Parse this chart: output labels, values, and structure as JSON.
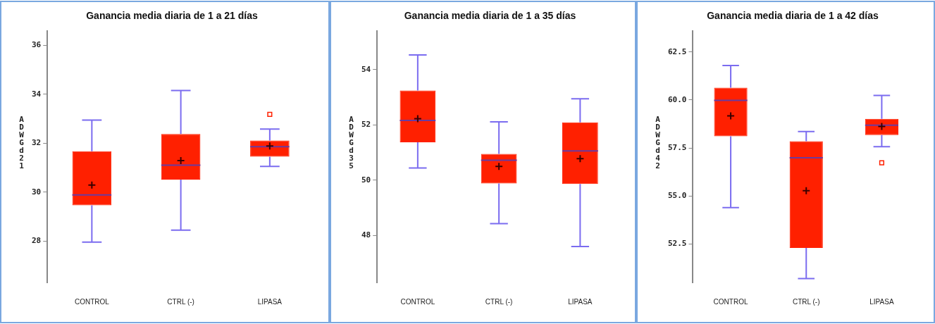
{
  "chart_data": [
    {
      "type": "box",
      "title": "Ganancia media diaria de 1 a 21 días",
      "ylabel": "ADWGd21",
      "categories": [
        "CONTROL",
        "CTRL (-)",
        "LIPASA"
      ],
      "ylim": [
        26.3,
        36.6
      ],
      "yticks": [
        28,
        30,
        32,
        34,
        36
      ],
      "grid": false,
      "legend": false,
      "series": [
        {
          "color": "#ff2000",
          "boxes": [
            {
              "low": 27.95,
              "q1": 29.46,
              "median": 29.88,
              "q3": 31.67,
              "high": 32.95,
              "mean": 30.29
            },
            {
              "low": 28.44,
              "q1": 30.51,
              "median": 31.1,
              "q3": 32.38,
              "high": 34.16,
              "mean": 31.29
            },
            {
              "low": 31.05,
              "q1": 31.45,
              "median": 31.86,
              "q3": 32.11,
              "high": 32.58,
              "mean": 31.89,
              "outliers": [
                33.18
              ]
            }
          ]
        }
      ]
    },
    {
      "type": "box",
      "title": "Ganancia media diaria de 1 a 35 días",
      "ylabel": "ADWGd35",
      "categories": [
        "CONTROL",
        "CTRL (-)",
        "LIPASA"
      ],
      "ylim": [
        46.3,
        55.4
      ],
      "yticks": [
        48,
        50,
        52,
        54
      ],
      "grid": false,
      "legend": false,
      "series": [
        {
          "color": "#ff2000",
          "boxes": [
            {
              "low": 50.44,
              "q1": 51.37,
              "median": 52.16,
              "q3": 53.24,
              "high": 54.53,
              "mean": 52.22
            },
            {
              "low": 48.43,
              "q1": 49.88,
              "median": 50.72,
              "q3": 50.95,
              "high": 52.11,
              "mean": 50.5
            },
            {
              "low": 47.6,
              "q1": 49.86,
              "median": 51.06,
              "q3": 52.09,
              "high": 52.94,
              "mean": 50.78
            }
          ]
        }
      ]
    },
    {
      "type": "box",
      "title": "Ganancia media diaria de 1 a 42 días",
      "ylabel": "ADWGd42",
      "categories": [
        "CONTROL",
        "CTRL (-)",
        "LIPASA"
      ],
      "ylim": [
        50.5,
        63.6
      ],
      "yticks": [
        {
          "value": 52.5,
          "label": "52.5"
        },
        {
          "value": 55,
          "label": "55.0"
        },
        {
          "value": 57.5,
          "label": "57.5"
        },
        {
          "value": 60,
          "label": "60.0"
        },
        {
          "value": 62.5,
          "label": "62.5"
        }
      ],
      "grid": false,
      "legend": false,
      "series": [
        {
          "color": "#ff2000",
          "boxes": [
            {
              "low": 54.4,
              "q1": 58.11,
              "median": 59.98,
              "q3": 60.64,
              "high": 61.8,
              "mean": 59.17
            },
            {
              "low": 50.7,
              "q1": 52.3,
              "median": 56.99,
              "q3": 57.85,
              "high": 58.36,
              "mean": 55.28
            },
            {
              "low": 57.57,
              "q1": 58.17,
              "median": 58.69,
              "q3": 59.02,
              "high": 60.24,
              "mean": 58.62,
              "outliers": [
                56.73
              ]
            }
          ]
        }
      ]
    }
  ]
}
